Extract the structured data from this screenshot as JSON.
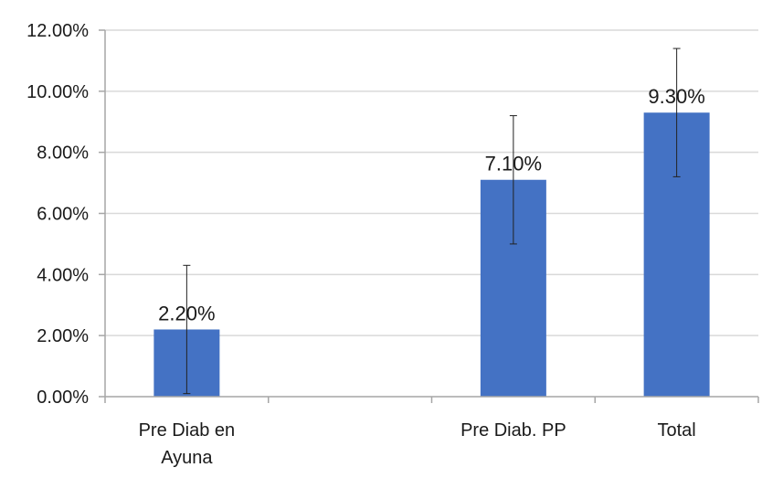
{
  "chart_data": {
    "type": "bar",
    "title": "",
    "xlabel": "",
    "ylabel": "",
    "ylim": [
      0,
      12
    ],
    "y_tick_values": [
      0,
      2,
      4,
      6,
      8,
      10,
      12
    ],
    "y_tick_labels": [
      "0.00%",
      "2.00%",
      "4.00%",
      "6.00%",
      "8.00%",
      "10.00%",
      "12.00%"
    ],
    "grid": true,
    "legend": "none",
    "categories": [
      [
        "Pre Diab en",
        "Ayuna"
      ],
      [
        ""
      ],
      [
        "Pre Diab. PP"
      ],
      [
        "Total"
      ]
    ],
    "values": [
      2.2,
      null,
      7.1,
      9.3
    ],
    "data_labels": [
      "2.20%",
      "",
      "7.10%",
      "9.30%"
    ],
    "error_bars": [
      {
        "low": 0.1,
        "high": 4.3
      },
      null,
      {
        "low": 5.0,
        "high": 9.2
      },
      {
        "low": 7.2,
        "high": 11.4
      }
    ],
    "bar_color": "#4472C4",
    "grid_color": "#D9D9D9",
    "axis_color": "#A6A6A6"
  }
}
